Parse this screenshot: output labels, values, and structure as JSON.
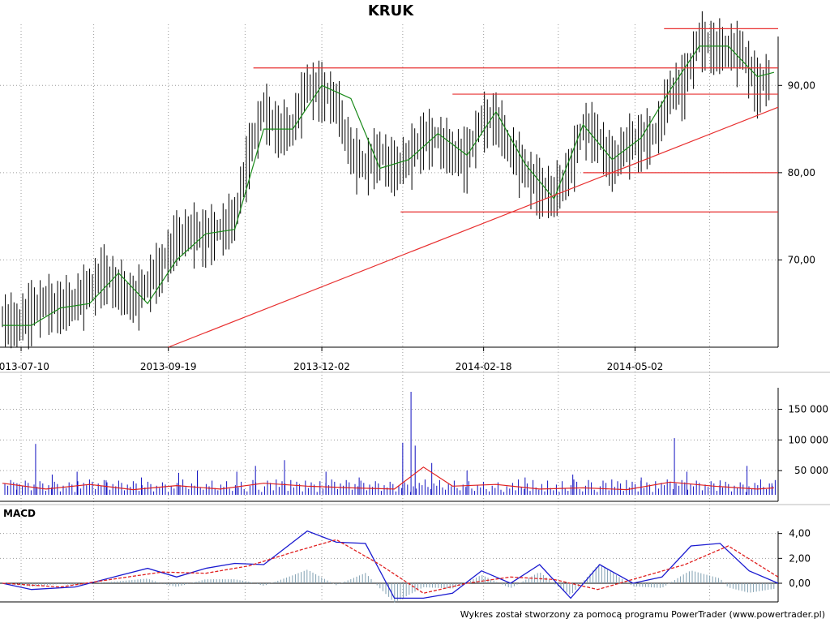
{
  "chart_data": [
    {
      "type": "candlestick",
      "title": "KRUK",
      "xlabel": "",
      "ylabel": "",
      "x_ticks": [
        "2013-07-10",
        "2013-09-19",
        "2013-12-02",
        "2014-02-18",
        "2014-05-02"
      ],
      "y_ticks": [
        "70,00",
        "80,00",
        "90,00"
      ],
      "ylim": [
        60,
        97
      ],
      "x_range": [
        "2013-07-01",
        "2014-07-10"
      ],
      "grid": true,
      "series": [
        {
          "style": "ohlc-bars",
          "color": "#000000",
          "points": [
            [
              "2013-07-01",
              63.5
            ],
            [
              "2013-07-08",
              62.8
            ],
            [
              "2013-07-15",
              64.5
            ],
            [
              "2013-07-22",
              65.3
            ],
            [
              "2013-07-29",
              64.8
            ],
            [
              "2013-08-05",
              65.5
            ],
            [
              "2013-08-12",
              66.8
            ],
            [
              "2013-08-19",
              68.6
            ],
            [
              "2013-08-26",
              67.2
            ],
            [
              "2013-09-02",
              65.5
            ],
            [
              "2013-09-09",
              67.5
            ],
            [
              "2013-09-16",
              69.6
            ],
            [
              "2013-09-23",
              72.5
            ],
            [
              "2013-09-30",
              73.5
            ],
            [
              "2013-10-07",
              73.0
            ],
            [
              "2013-10-14",
              73.5
            ],
            [
              "2013-10-21",
              75.0
            ],
            [
              "2013-10-28",
              82.5
            ],
            [
              "2013-11-04",
              87.5
            ],
            [
              "2013-11-11",
              85.0
            ],
            [
              "2013-11-18",
              85.5
            ],
            [
              "2013-11-25",
              90.2
            ],
            [
              "2013-12-02",
              89.5
            ],
            [
              "2013-12-09",
              88.5
            ],
            [
              "2013-12-16",
              82.5
            ],
            [
              "2013-12-23",
              81.0
            ],
            [
              "2013-12-30",
              82.5
            ],
            [
              "2014-01-06",
              80.5
            ],
            [
              "2014-01-13",
              82.0
            ],
            [
              "2014-01-20",
              84.2
            ],
            [
              "2014-01-27",
              84.0
            ],
            [
              "2014-02-03",
              82.5
            ],
            [
              "2014-02-10",
              82.0
            ],
            [
              "2014-02-17",
              86.0
            ],
            [
              "2014-02-24",
              86.5
            ],
            [
              "2014-03-03",
              83.0
            ],
            [
              "2014-03-10",
              80.5
            ],
            [
              "2014-03-17",
              78.5
            ],
            [
              "2014-03-24",
              77.8
            ],
            [
              "2014-03-31",
              80.0
            ],
            [
              "2014-04-07",
              85.5
            ],
            [
              "2014-04-14",
              84.5
            ],
            [
              "2014-04-21",
              81.0
            ],
            [
              "2014-04-28",
              83.5
            ],
            [
              "2014-05-05",
              84.0
            ],
            [
              "2014-05-12",
              84.5
            ],
            [
              "2014-05-19",
              89.5
            ],
            [
              "2014-05-26",
              90.5
            ],
            [
              "2014-06-02",
              95.5
            ],
            [
              "2014-06-09",
              94.5
            ],
            [
              "2014-06-16",
              94.5
            ],
            [
              "2014-06-23",
              94.0
            ],
            [
              "2014-06-30",
              90.0
            ],
            [
              "2014-07-07",
              91.5
            ]
          ]
        },
        {
          "name": "",
          "style": "line",
          "color": "#1a8a1a",
          "points": [
            [
              "2013-07-01",
              62.5
            ],
            [
              "2013-07-15",
              62.5
            ],
            [
              "2013-07-29",
              64.5
            ],
            [
              "2013-08-12",
              65.0
            ],
            [
              "2013-08-26",
              68.5
            ],
            [
              "2013-09-09",
              65.0
            ],
            [
              "2013-09-23",
              70.0
            ],
            [
              "2013-10-07",
              73.0
            ],
            [
              "2013-10-21",
              73.5
            ],
            [
              "2013-11-04",
              85.0
            ],
            [
              "2013-11-18",
              85.0
            ],
            [
              "2013-12-02",
              90.0
            ],
            [
              "2013-12-16",
              88.5
            ],
            [
              "2013-12-30",
              80.5
            ],
            [
              "2014-01-13",
              81.5
            ],
            [
              "2014-01-27",
              84.5
            ],
            [
              "2014-02-10",
              82.0
            ],
            [
              "2014-02-24",
              87.0
            ],
            [
              "2014-03-10",
              81.0
            ],
            [
              "2014-03-24",
              77.0
            ],
            [
              "2014-04-07",
              85.5
            ],
            [
              "2014-04-21",
              81.5
            ],
            [
              "2014-05-05",
              84.0
            ],
            [
              "2014-05-19",
              89.5
            ],
            [
              "2014-06-02",
              94.5
            ],
            [
              "2014-06-16",
              94.5
            ],
            [
              "2014-06-30",
              91.0
            ],
            [
              "2014-07-08",
              91.5
            ]
          ]
        }
      ],
      "annotations": [
        {
          "type": "hline",
          "y": 96.5,
          "from": "2014-05-16",
          "to": "2014-07-10",
          "color": "#e83030"
        },
        {
          "type": "hline",
          "y": 92.0,
          "from": "2013-10-30",
          "to": "2014-07-10",
          "color": "#e83030"
        },
        {
          "type": "hline",
          "y": 89.0,
          "from": "2014-02-03",
          "to": "2014-07-10",
          "color": "#e83030"
        },
        {
          "type": "hline",
          "y": 80.0,
          "from": "2014-04-07",
          "to": "2014-07-10",
          "color": "#e83030"
        },
        {
          "type": "hline",
          "y": 75.5,
          "from": "2014-01-09",
          "to": "2014-07-10",
          "color": "#e83030"
        },
        {
          "type": "trendline",
          "from": [
            "2013-09-19",
            60.0
          ],
          "to": [
            "2014-07-10",
            87.5
          ],
          "color": "#e83030"
        }
      ]
    },
    {
      "type": "bar",
      "title": "",
      "y_ticks": [
        "50 000",
        "100 000",
        "150 000"
      ],
      "ylim": [
        0,
        185000
      ],
      "grid": true,
      "series": [
        {
          "name": "",
          "style": "bars",
          "color": "#1010c0",
          "points": [
            [
              "2013-07-08",
              20000
            ],
            [
              "2013-07-17",
              88000
            ],
            [
              "2013-07-25",
              35000
            ],
            [
              "2013-08-06",
              40000
            ],
            [
              "2013-08-20",
              25000
            ],
            [
              "2013-09-06",
              30000
            ],
            [
              "2013-09-24",
              38000
            ],
            [
              "2013-10-03",
              42000
            ],
            [
              "2013-10-22",
              40000
            ],
            [
              "2013-10-31",
              50000
            ],
            [
              "2013-11-14",
              60000
            ],
            [
              "2013-12-04",
              40000
            ],
            [
              "2013-12-20",
              30000
            ],
            [
              "2014-01-10",
              90000
            ],
            [
              "2014-01-14",
              178000
            ],
            [
              "2014-01-16",
              85000
            ],
            [
              "2014-01-24",
              55000
            ],
            [
              "2014-02-10",
              42000
            ],
            [
              "2014-03-10",
              30000
            ],
            [
              "2014-04-02",
              35000
            ],
            [
              "2014-05-05",
              30000
            ],
            [
              "2014-05-21",
              98000
            ],
            [
              "2014-05-27",
              40000
            ],
            [
              "2014-06-12",
              25000
            ],
            [
              "2014-06-25",
              50000
            ],
            [
              "2014-07-07",
              20000
            ]
          ]
        },
        {
          "name": "",
          "style": "line",
          "color": "#e02020",
          "points": [
            [
              "2013-07-01",
              20000
            ],
            [
              "2013-07-22",
              10000
            ],
            [
              "2013-08-12",
              18000
            ],
            [
              "2013-09-02",
              9000
            ],
            [
              "2013-09-23",
              16000
            ],
            [
              "2013-10-14",
              10000
            ],
            [
              "2013-11-04",
              20000
            ],
            [
              "2013-11-25",
              15000
            ],
            [
              "2013-12-16",
              12000
            ],
            [
              "2014-01-06",
              10000
            ],
            [
              "2014-01-20",
              48000
            ],
            [
              "2014-02-03",
              15000
            ],
            [
              "2014-02-24",
              18000
            ],
            [
              "2014-03-17",
              10000
            ],
            [
              "2014-04-07",
              12000
            ],
            [
              "2014-04-28",
              9000
            ],
            [
              "2014-05-19",
              22000
            ],
            [
              "2014-06-09",
              15000
            ],
            [
              "2014-06-30",
              10000
            ],
            [
              "2014-07-08",
              12000
            ]
          ]
        }
      ]
    },
    {
      "type": "line",
      "title": "MACD",
      "y_ticks": [
        "0,00",
        "2,00",
        "4,00"
      ],
      "ylim": [
        -1.5,
        4.5
      ],
      "grid": true,
      "series": [
        {
          "name": "",
          "style": "line",
          "color": "#1a1ad0",
          "points": [
            [
              "2013-07-01",
              0.0
            ],
            [
              "2013-07-15",
              -0.5
            ],
            [
              "2013-08-05",
              -0.3
            ],
            [
              "2013-08-26",
              0.6
            ],
            [
              "2013-09-09",
              1.2
            ],
            [
              "2013-09-23",
              0.5
            ],
            [
              "2013-10-07",
              1.2
            ],
            [
              "2013-10-21",
              1.6
            ],
            [
              "2013-11-04",
              1.5
            ],
            [
              "2013-11-25",
              4.2
            ],
            [
              "2013-12-09",
              3.3
            ],
            [
              "2013-12-23",
              3.2
            ],
            [
              "2014-01-06",
              -1.2
            ],
            [
              "2014-01-20",
              -1.2
            ],
            [
              "2014-02-03",
              -0.8
            ],
            [
              "2014-02-17",
              1.0
            ],
            [
              "2014-03-03",
              0.0
            ],
            [
              "2014-03-17",
              1.5
            ],
            [
              "2014-04-01",
              -1.2
            ],
            [
              "2014-04-15",
              1.5
            ],
            [
              "2014-05-01",
              0.0
            ],
            [
              "2014-05-15",
              0.5
            ],
            [
              "2014-05-29",
              3.0
            ],
            [
              "2014-06-12",
              3.2
            ],
            [
              "2014-06-26",
              1.0
            ],
            [
              "2014-07-10",
              0.0
            ]
          ]
        },
        {
          "name": "",
          "style": "dashed",
          "color": "#e02020",
          "points": [
            [
              "2013-07-01",
              0.0
            ],
            [
              "2013-07-29",
              -0.3
            ],
            [
              "2013-08-26",
              0.4
            ],
            [
              "2013-09-16",
              0.9
            ],
            [
              "2013-10-07",
              0.8
            ],
            [
              "2013-10-28",
              1.4
            ],
            [
              "2013-11-18",
              2.5
            ],
            [
              "2013-12-09",
              3.5
            ],
            [
              "2013-12-30",
              1.5
            ],
            [
              "2014-01-20",
              -0.8
            ],
            [
              "2014-02-10",
              0.0
            ],
            [
              "2014-03-03",
              0.5
            ],
            [
              "2014-03-24",
              0.3
            ],
            [
              "2014-04-14",
              -0.5
            ],
            [
              "2014-05-05",
              0.5
            ],
            [
              "2014-05-26",
              1.5
            ],
            [
              "2014-06-16",
              3.0
            ],
            [
              "2014-07-10",
              0.5
            ]
          ]
        }
      ],
      "histogram_color": "#7f9fb0"
    }
  ],
  "footer": "Wykres został stworzony za pomocą programu PowerTrader (www.powertrader.pl)"
}
